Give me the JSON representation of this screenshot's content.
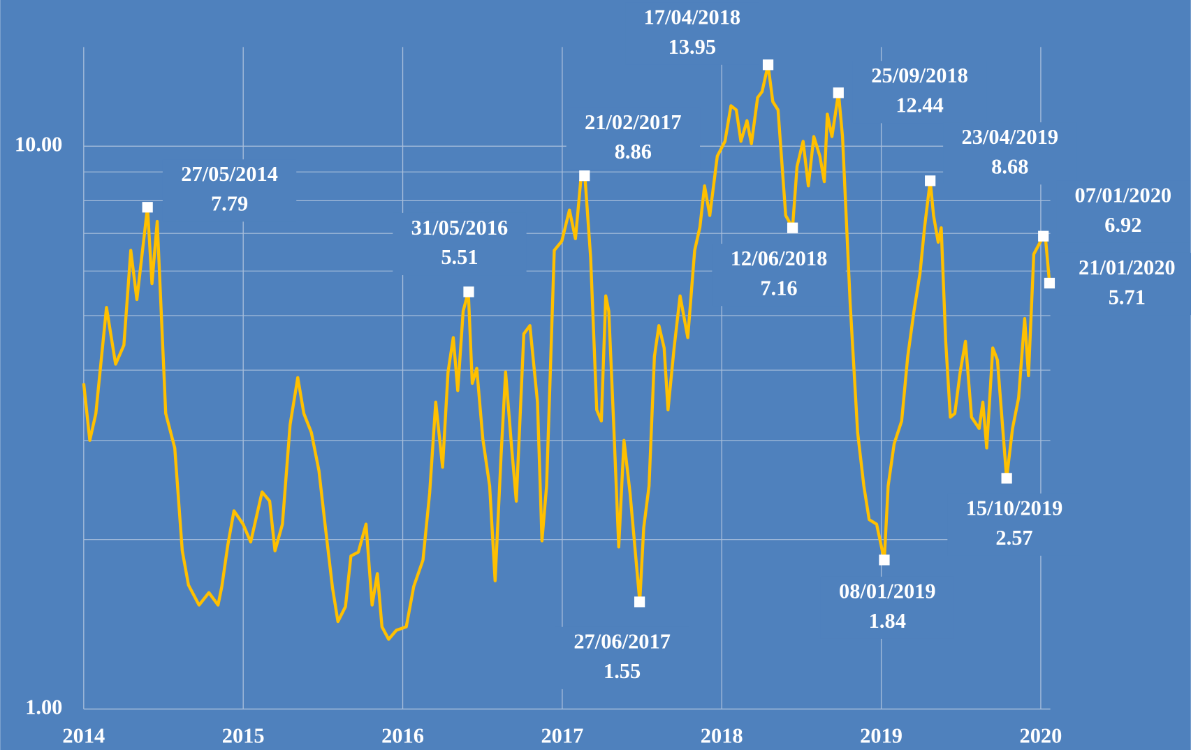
{
  "chart_data": {
    "type": "line",
    "yscale": "log",
    "color": "#ffc000",
    "background": "#4f81bd",
    "grid": true,
    "xlim": [
      2014,
      2020.06
    ],
    "xticks": [
      2014,
      2015,
      2016,
      2017,
      2018,
      2019,
      2020
    ],
    "ylim": [
      1,
      15
    ],
    "yticks": [
      {
        "value": 1,
        "label": "1.00"
      },
      {
        "value": 10,
        "label": "10.00"
      }
    ],
    "yminor": [
      2,
      3,
      4,
      5,
      6,
      7,
      8,
      9
    ],
    "x": [
      2014.0,
      2014.038,
      2014.076,
      2014.143,
      2014.2,
      2014.252,
      2014.295,
      2014.333,
      2014.4,
      2014.428,
      2014.461,
      2014.514,
      2014.571,
      2014.618,
      2014.657,
      2014.723,
      2014.785,
      2014.842,
      2014.866,
      2014.904,
      2014.942,
      2014.999,
      2015.047,
      2015.118,
      2015.166,
      2015.199,
      2015.246,
      2015.294,
      2015.342,
      2015.38,
      2015.427,
      2015.475,
      2015.513,
      2015.56,
      2015.594,
      2015.641,
      2015.675,
      2015.722,
      2015.77,
      2015.808,
      2015.841,
      2015.87,
      2015.912,
      2015.96,
      2016.022,
      2016.069,
      2016.127,
      2016.169,
      2016.207,
      2016.25,
      2016.284,
      2016.317,
      2016.345,
      2016.379,
      2016.411,
      2016.436,
      2016.464,
      2016.502,
      2016.545,
      2016.579,
      2016.617,
      2016.645,
      2016.683,
      2016.712,
      2016.759,
      2016.797,
      2016.845,
      2016.873,
      2016.902,
      2016.95,
      2016.997,
      2017.045,
      2017.083,
      2017.116,
      2017.142,
      2017.178,
      2017.216,
      2017.245,
      2017.273,
      2017.292,
      2017.321,
      2017.354,
      2017.387,
      2017.425,
      2017.486,
      2017.511,
      2017.544,
      2017.578,
      2017.606,
      2017.639,
      2017.663,
      2017.701,
      2017.739,
      2017.787,
      2017.83,
      2017.863,
      2017.892,
      2017.925,
      2017.972,
      2018.02,
      2018.058,
      2018.091,
      2018.12,
      2018.158,
      2018.186,
      2018.225,
      2018.253,
      2018.29,
      2018.32,
      2018.353,
      2018.401,
      2018.444,
      2018.472,
      2018.51,
      2018.543,
      2018.577,
      2018.615,
      2018.643,
      2018.662,
      2018.691,
      2018.732,
      2018.757,
      2018.805,
      2018.852,
      2018.891,
      2018.924,
      2018.971,
      2019.019,
      2019.043,
      2019.081,
      2019.128,
      2019.166,
      2019.205,
      2019.243,
      2019.271,
      2019.307,
      2019.328,
      2019.357,
      2019.376,
      2019.404,
      2019.433,
      2019.461,
      2019.495,
      2019.528,
      2019.566,
      2019.614,
      2019.637,
      2019.661,
      2019.699,
      2019.728,
      2019.786,
      2019.823,
      2019.861,
      2019.899,
      2019.923,
      2019.956,
      2020.016,
      2020.03,
      2020.055
    ],
    "values": [
      3.79,
      3.0,
      3.35,
      5.17,
      4.1,
      4.43,
      6.53,
      5.34,
      7.79,
      5.7,
      7.35,
      3.35,
      2.91,
      1.91,
      1.66,
      1.53,
      1.61,
      1.53,
      1.65,
      1.96,
      2.25,
      2.13,
      1.98,
      2.43,
      2.34,
      1.91,
      2.13,
      3.2,
      3.88,
      3.35,
      3.1,
      2.65,
      2.13,
      1.64,
      1.43,
      1.52,
      1.87,
      1.9,
      2.13,
      1.53,
      1.74,
      1.4,
      1.33,
      1.38,
      1.4,
      1.65,
      1.84,
      2.42,
      3.51,
      2.69,
      3.97,
      4.57,
      3.68,
      5.09,
      5.51,
      3.79,
      4.03,
      3.02,
      2.49,
      1.69,
      2.83,
      3.97,
      2.91,
      2.34,
      4.64,
      4.8,
      3.51,
      1.99,
      2.49,
      6.53,
      6.78,
      7.7,
      6.85,
      8.7,
      8.86,
      6.34,
      3.4,
      3.25,
      5.42,
      5.09,
      3.29,
      1.94,
      3.0,
      2.42,
      1.55,
      2.1,
      2.49,
      4.23,
      4.8,
      4.38,
      3.4,
      4.38,
      5.42,
      4.57,
      6.53,
      7.18,
      8.5,
      7.53,
      9.6,
      10.2,
      11.8,
      11.6,
      10.2,
      11.1,
      10.1,
      12.2,
      12.5,
      13.95,
      12.0,
      11.6,
      7.53,
      7.16,
      9.2,
      10.2,
      8.5,
      10.4,
      9.6,
      8.65,
      11.4,
      10.4,
      12.44,
      10.4,
      5.25,
      3.1,
      2.49,
      2.17,
      2.13,
      1.84,
      2.49,
      2.96,
      3.25,
      4.23,
      5.09,
      5.95,
      7.16,
      8.68,
      7.53,
      6.75,
      7.16,
      4.5,
      3.3,
      3.35,
      3.97,
      4.5,
      3.3,
      3.15,
      3.51,
      2.91,
      4.38,
      4.17,
      2.57,
      3.15,
      3.57,
      4.94,
      3.91,
      6.43,
      6.92,
      6.85,
      5.71
    ],
    "annotations": [
      {
        "date": "27/05/2014",
        "value": 7.79
      },
      {
        "date": "31/05/2016",
        "value": 5.51
      },
      {
        "date": "21/02/2017",
        "value": 8.86
      },
      {
        "date": "27/06/2017",
        "value": 1.55
      },
      {
        "date": "17/04/2018",
        "value": 13.95
      },
      {
        "date": "12/06/2018",
        "value": 7.16
      },
      {
        "date": "25/09/2018",
        "value": 12.44
      },
      {
        "date": "08/01/2019",
        "value": 1.84
      },
      {
        "date": "23/04/2019",
        "value": 8.68
      },
      {
        "date": "15/10/2019",
        "value": 2.57
      },
      {
        "date": "07/01/2020",
        "value": 6.92
      },
      {
        "date": "21/01/2020",
        "value": 5.71
      }
    ]
  }
}
